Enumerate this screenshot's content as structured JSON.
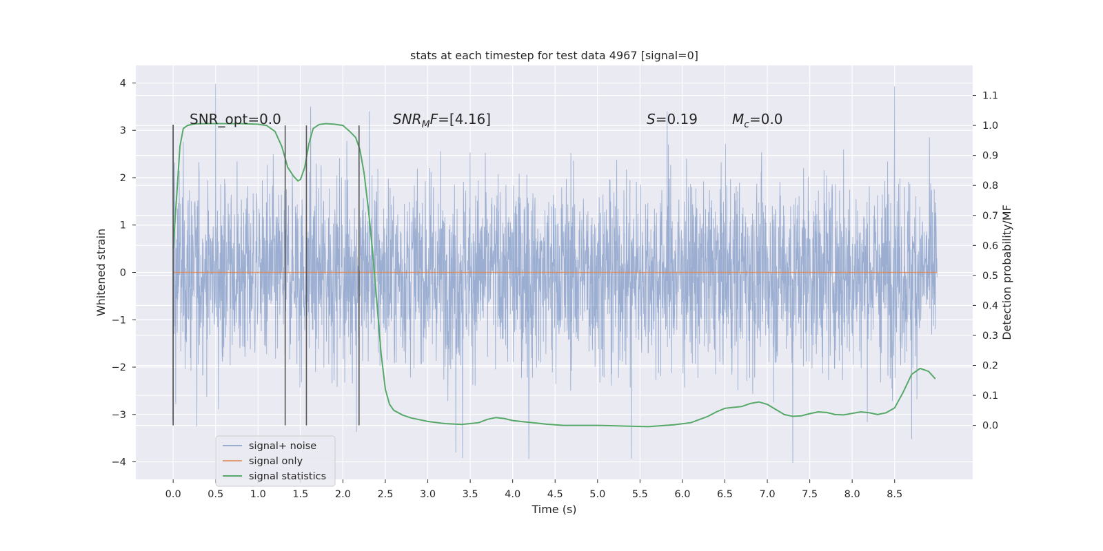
{
  "chart_data": {
    "type": "line",
    "title": "stats at each timestep for test data 4967 [signal=0]",
    "xlabel": "Time (s)",
    "ylabel": "Whitened strain",
    "y2label": "Detection probability/MF",
    "xlim": [
      -0.44,
      9.42
    ],
    "ylim": [
      -4.37,
      4.37
    ],
    "y2lim": [
      -0.18,
      1.2
    ],
    "x_ticks": [
      0.0,
      0.5,
      1.0,
      1.5,
      2.0,
      2.5,
      3.0,
      3.5,
      4.0,
      4.5,
      5.0,
      5.5,
      6.0,
      6.5,
      7.0,
      7.5,
      8.0,
      8.5
    ],
    "x_tick_labels": [
      "0.0",
      "0.5",
      "1.0",
      "1.5",
      "2.0",
      "2.5",
      "3.0",
      "3.5",
      "4.0",
      "4.5",
      "5.0",
      "5.5",
      "6.0",
      "6.5",
      "7.0",
      "7.5",
      "8.0",
      "8.5"
    ],
    "y_ticks": [
      4,
      3,
      2,
      1,
      0,
      -1,
      -2,
      -3,
      -4
    ],
    "y_tick_labels": [
      "4",
      "3",
      "2",
      "1",
      "0",
      "−1",
      "−2",
      "−3",
      "−4"
    ],
    "y2_ticks": [
      1.1,
      1.0,
      0.9,
      0.8,
      0.7,
      0.6,
      0.5,
      0.4,
      0.3,
      0.2,
      0.1,
      0.0
    ],
    "y2_tick_labels": [
      "1.1",
      "1.0",
      "0.9",
      "0.8",
      "0.7",
      "0.6",
      "0.5",
      "0.4",
      "0.3",
      "0.2",
      "0.1",
      "0.0"
    ],
    "vertical_markers": [
      0.0,
      1.32,
      1.57,
      2.19
    ],
    "annotations": {
      "snr_opt": "SNR_opt=0.0",
      "snr_mf_base": "SNR",
      "snr_mf_sub": "M",
      "snr_mf_tail": "F=[4.16]",
      "s_label": "S",
      "s_value": "=0.19",
      "mc_base": "M",
      "mc_sub": "c",
      "mc_value": "=0.0"
    },
    "series": [
      {
        "name": "signal+ noise",
        "color": "#4c72b0",
        "axis": "left",
        "description": "whitened noise strain, roughly uniform band between about -3.3 and 3.4 across 0-9 s",
        "x_range": [
          0.0,
          9.0
        ],
        "peaks": [
          [
            0.5,
            3.98
          ],
          [
            1.62,
            3.5
          ],
          [
            2.31,
            3.4
          ],
          [
            5.82,
            3.4
          ],
          [
            8.5,
            3.93
          ]
        ],
        "troughs": [
          [
            0.28,
            -3.25
          ],
          [
            2.16,
            -3.37
          ],
          [
            3.33,
            -3.8
          ],
          [
            3.41,
            -3.92
          ],
          [
            4.19,
            -3.94
          ],
          [
            5.4,
            -3.93
          ],
          [
            7.3,
            -4.02
          ],
          [
            8.7,
            -3.52
          ]
        ]
      },
      {
        "name": "signal only",
        "color": "#dd8452",
        "axis": "left",
        "x": [
          0.0,
          9.0
        ],
        "y": [
          0.0,
          0.0
        ]
      },
      {
        "name": "signal statistics",
        "color": "#55a868",
        "axis": "right",
        "x": [
          0.0,
          0.05,
          0.08,
          0.12,
          0.17,
          0.25,
          0.4,
          0.6,
          0.8,
          1.0,
          1.1,
          1.2,
          1.28,
          1.35,
          1.42,
          1.47,
          1.5,
          1.55,
          1.6,
          1.65,
          1.72,
          1.8,
          1.9,
          2.0,
          2.08,
          2.15,
          2.2,
          2.25,
          2.3,
          2.35,
          2.4,
          2.45,
          2.5,
          2.55,
          2.6,
          2.7,
          2.8,
          3.0,
          3.2,
          3.4,
          3.6,
          3.7,
          3.8,
          3.9,
          4.0,
          4.2,
          4.4,
          4.6,
          5.0,
          5.3,
          5.6,
          5.9,
          6.1,
          6.3,
          6.4,
          6.5,
          6.6,
          6.7,
          6.8,
          6.9,
          7.0,
          7.1,
          7.2,
          7.3,
          7.4,
          7.5,
          7.6,
          7.7,
          7.8,
          7.9,
          8.0,
          8.1,
          8.2,
          8.3,
          8.4,
          8.5,
          8.6,
          8.7,
          8.8,
          8.9,
          8.98
        ],
        "y": [
          0.59,
          0.8,
          0.93,
          0.99,
          1.0,
          1.005,
          1.006,
          1.006,
          1.006,
          1.004,
          1.0,
          0.98,
          0.93,
          0.86,
          0.83,
          0.815,
          0.82,
          0.86,
          0.94,
          0.99,
          1.003,
          1.006,
          1.004,
          1.0,
          0.98,
          0.96,
          0.92,
          0.84,
          0.72,
          0.58,
          0.41,
          0.24,
          0.12,
          0.07,
          0.05,
          0.035,
          0.025,
          0.013,
          0.006,
          0.003,
          0.009,
          0.02,
          0.026,
          0.023,
          0.016,
          0.01,
          0.004,
          0.0,
          0.0,
          -0.002,
          -0.004,
          0.002,
          0.009,
          0.03,
          0.045,
          0.057,
          0.06,
          0.063,
          0.073,
          0.078,
          0.07,
          0.053,
          0.036,
          0.03,
          0.032,
          0.039,
          0.045,
          0.043,
          0.036,
          0.035,
          0.04,
          0.045,
          0.042,
          0.036,
          0.042,
          0.058,
          0.11,
          0.17,
          0.19,
          0.18,
          0.155
        ]
      }
    ],
    "legend": {
      "position": "lower-left",
      "entries": [
        "signal+ noise",
        "signal only",
        "signal statistics"
      ]
    },
    "grid": true,
    "background_color": "#eaeaf2"
  }
}
